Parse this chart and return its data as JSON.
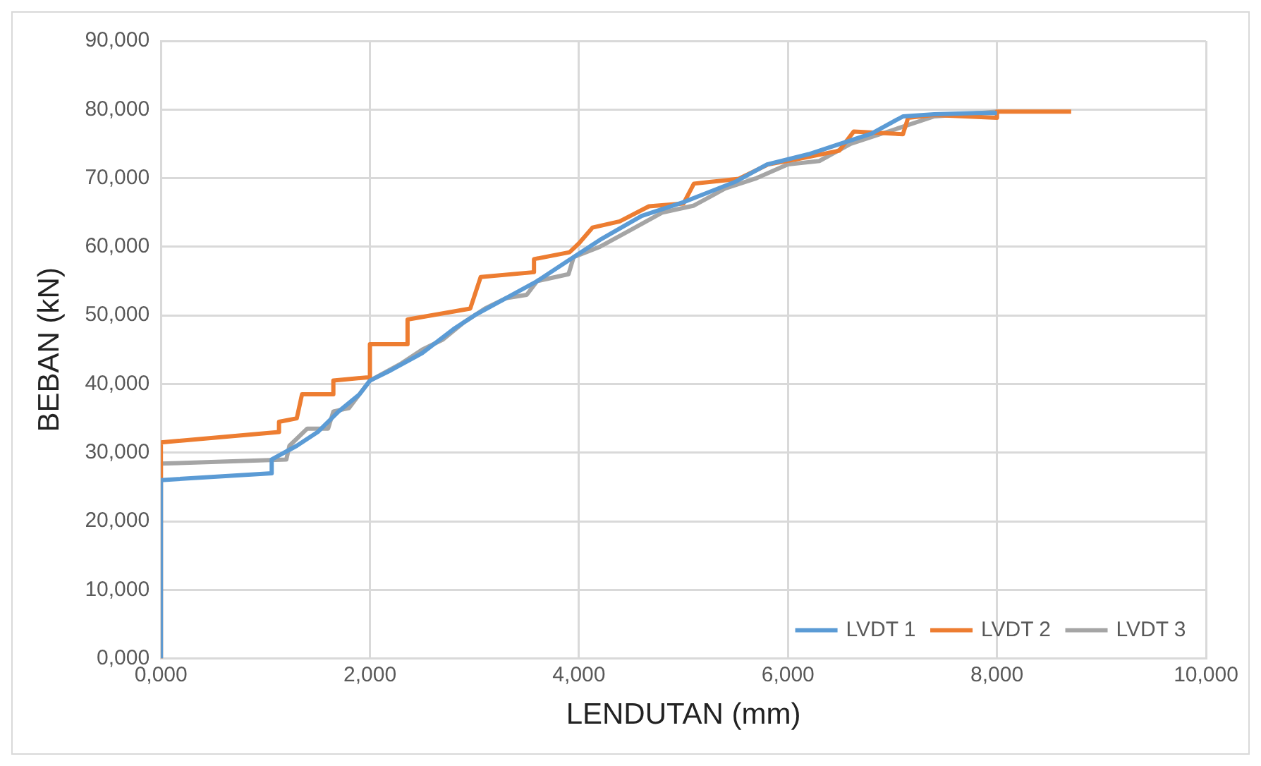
{
  "chart_data": {
    "type": "line",
    "xlabel": "LENDUTAN (mm)",
    "ylabel": "BEBAN (kN)",
    "xlim": [
      0,
      10
    ],
    "ylim": [
      0,
      90
    ],
    "xticks": [
      {
        "value": 0,
        "label": "0,000"
      },
      {
        "value": 2,
        "label": "2,000"
      },
      {
        "value": 4,
        "label": "4,000"
      },
      {
        "value": 6,
        "label": "6,000"
      },
      {
        "value": 8,
        "label": "8,000"
      },
      {
        "value": 10,
        "label": "10,000"
      }
    ],
    "yticks": [
      {
        "value": 0,
        "label": "0,000"
      },
      {
        "value": 10,
        "label": "10,000"
      },
      {
        "value": 20,
        "label": "20,000"
      },
      {
        "value": 30,
        "label": "30,000"
      },
      {
        "value": 40,
        "label": "40,000"
      },
      {
        "value": 50,
        "label": "50,000"
      },
      {
        "value": 60,
        "label": "60,000"
      },
      {
        "value": 70,
        "label": "70,000"
      },
      {
        "value": 80,
        "label": "80,000"
      },
      {
        "value": 90,
        "label": "90,000"
      }
    ],
    "grid": true,
    "legend": "bottom right",
    "marker": "none",
    "line_style": "solid",
    "series": [
      {
        "name": "LVDT 1",
        "color": "#5b9bd5",
        "x": [
          0,
          0,
          1.06,
          1.06,
          1.3,
          1.5,
          1.7,
          1.9,
          2.0,
          2.2,
          2.5,
          2.8,
          3.0,
          3.3,
          3.6,
          3.9,
          4.2,
          4.6,
          5.0,
          5.5,
          5.8,
          6.2,
          6.5,
          6.8,
          7.1,
          7.4,
          7.8,
          8.0
        ],
        "values": [
          0,
          26,
          27,
          29,
          31,
          33,
          36,
          38.5,
          40.5,
          42,
          44.5,
          48,
          50,
          52.5,
          55,
          58,
          61,
          64.5,
          66.5,
          69.5,
          72,
          73.5,
          75,
          76.5,
          79,
          79.3,
          79.5,
          79.5
        ]
      },
      {
        "name": "LVDT 2",
        "color": "#ed7d31",
        "x": [
          0,
          0,
          1.13,
          1.13,
          1.3,
          1.35,
          1.65,
          1.65,
          2.0,
          2.0,
          2.36,
          2.36,
          2.96,
          3.06,
          3.57,
          3.57,
          3.91,
          4.0,
          4.13,
          4.39,
          4.67,
          5.0,
          5.1,
          5.53,
          5.81,
          6.1,
          6.49,
          6.63,
          7.1,
          7.15,
          7.39,
          8.0,
          8.0,
          8.71
        ],
        "values": [
          0,
          31.5,
          33,
          34.5,
          35,
          38.5,
          38.5,
          40.5,
          41,
          45.8,
          45.8,
          49.4,
          51,
          55.6,
          56.3,
          58.2,
          59.2,
          60.5,
          62.8,
          63.7,
          65.9,
          66.3,
          69.2,
          69.9,
          72,
          72.8,
          74,
          76.8,
          76.4,
          78.8,
          79.2,
          78.8,
          79.7,
          79.7
        ]
      },
      {
        "name": "LVDT 3",
        "color": "#a5a5a5",
        "x": [
          0,
          0,
          1.2,
          1.23,
          1.4,
          1.6,
          1.65,
          1.8,
          1.9,
          2.0,
          2.3,
          2.5,
          2.7,
          2.9,
          3.1,
          3.3,
          3.5,
          3.6,
          3.9,
          3.95,
          4.2,
          4.5,
          4.8,
          5.1,
          5.4,
          5.7,
          6.0,
          6.3,
          6.6,
          7.0,
          7.4,
          7.7,
          8.0
        ],
        "values": [
          0,
          28.4,
          29,
          31,
          33.5,
          33.5,
          36,
          36.5,
          38.5,
          40.5,
          43,
          45,
          46.5,
          49,
          51,
          52.5,
          53,
          55,
          56,
          58.5,
          60,
          62.5,
          65,
          66,
          68.5,
          70,
          72,
          72.5,
          75,
          77,
          79,
          79.3,
          79.7
        ]
      }
    ]
  }
}
